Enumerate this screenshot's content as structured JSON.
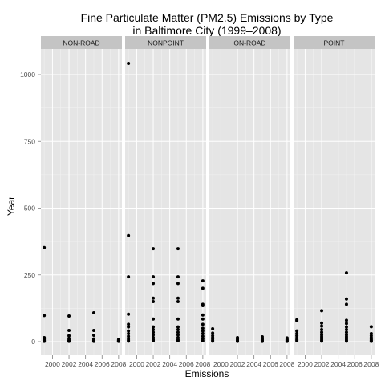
{
  "chart_data": {
    "type": "scatter",
    "title": [
      "Fine Particulate Matter (PM2.5) Emissions by Type",
      "in Baltimore City (1999–2008)"
    ],
    "xlabel": "Emissions",
    "ylabel": "Year",
    "xlim": [
      1998.6,
      2008.4
    ],
    "ylim": [
      -60,
      1100
    ],
    "x_ticks": [
      2000,
      2002,
      2004,
      2006,
      2008
    ],
    "x_tick_labels": [
      "2000",
      "2002",
      "2004",
      "2006",
      "2008"
    ],
    "y_ticks": [
      0,
      250,
      500,
      750,
      1000
    ],
    "y_tick_labels": [
      "0",
      "250",
      "500",
      "750",
      "1000"
    ],
    "grid": true,
    "panels": [
      {
        "name": "NON-ROAD",
        "points": [
          {
            "x": 1999,
            "y": [
              352,
              98,
              15,
              10,
              6,
              3,
              1
            ]
          },
          {
            "x": 2002,
            "y": [
              96,
              42,
              22,
              12,
              6,
              3,
              1
            ]
          },
          {
            "x": 2005,
            "y": [
              108,
              42,
              24,
              10,
              5,
              2,
              1
            ]
          },
          {
            "x": 2008,
            "y": [
              8,
              5,
              3,
              2,
              1
            ]
          }
        ]
      },
      {
        "name": "NONPOINT",
        "points": [
          {
            "x": 1999,
            "y": [
              1042,
              397,
              243,
              103,
              65,
              55,
              40,
              30,
              20,
              12,
              6,
              2
            ]
          },
          {
            "x": 2002,
            "y": [
              348,
              243,
              218,
              163,
              150,
              85,
              55,
              45,
              35,
              25,
              15,
              8,
              3
            ]
          },
          {
            "x": 2005,
            "y": [
              348,
              243,
              218,
              163,
              150,
              85,
              55,
              45,
              35,
              25,
              15,
              8,
              3
            ]
          },
          {
            "x": 2008,
            "y": [
              228,
              200,
              140,
              135,
              100,
              85,
              65,
              50,
              40,
              30,
              20,
              10,
              3
            ]
          }
        ]
      },
      {
        "name": "ON-ROAD",
        "points": [
          {
            "x": 1999,
            "y": [
              48,
              32,
              22,
              15,
              10,
              5,
              2
            ]
          },
          {
            "x": 2002,
            "y": [
              15,
              10,
              6,
              3,
              1
            ]
          },
          {
            "x": 2005,
            "y": [
              18,
              12,
              8,
              4,
              1
            ]
          },
          {
            "x": 2008,
            "y": [
              14,
              9,
              6,
              3,
              1
            ]
          }
        ]
      },
      {
        "name": "POINT",
        "points": [
          {
            "x": 1999,
            "y": [
              82,
              78,
              40,
              30,
              22,
              14,
              8,
              3
            ]
          },
          {
            "x": 2002,
            "y": [
              116,
              70,
              58,
              45,
              35,
              25,
              18,
              12,
              6,
              2
            ]
          },
          {
            "x": 2005,
            "y": [
              258,
              160,
              140,
              80,
              68,
              55,
              45,
              35,
              25,
              18,
              12,
              6,
              2
            ]
          },
          {
            "x": 2008,
            "y": [
              56,
              30,
              22,
              15,
              10,
              6,
              3,
              1
            ]
          }
        ]
      }
    ]
  }
}
